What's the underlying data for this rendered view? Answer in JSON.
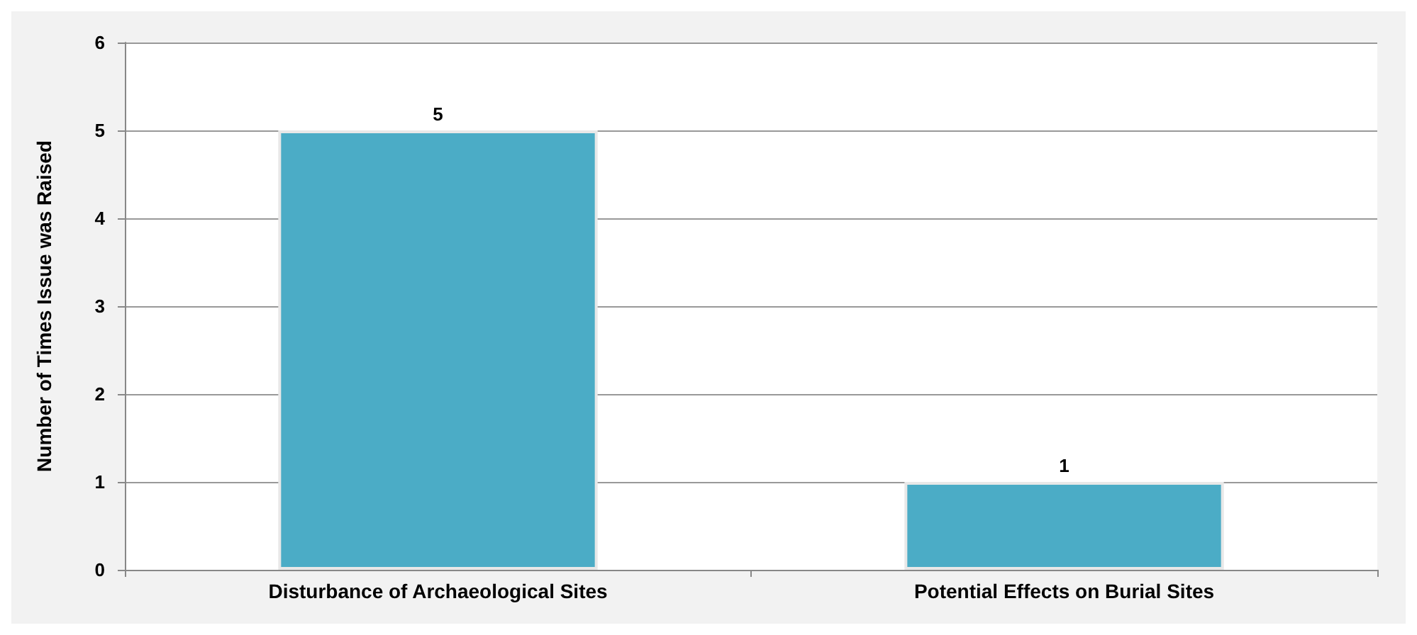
{
  "chart_data": {
    "type": "bar",
    "ylabel": "Number of Times Issue was Raised",
    "categories": [
      "Disturbance of Archaeological Sites",
      "Potential Effects on Burial Sites"
    ],
    "values": [
      5,
      1
    ],
    "color": "#4bacc6",
    "ylim": [
      0,
      6
    ],
    "yticks": [
      0,
      1,
      2,
      3,
      4,
      5,
      6
    ],
    "grid": "y",
    "data_labels": true
  }
}
